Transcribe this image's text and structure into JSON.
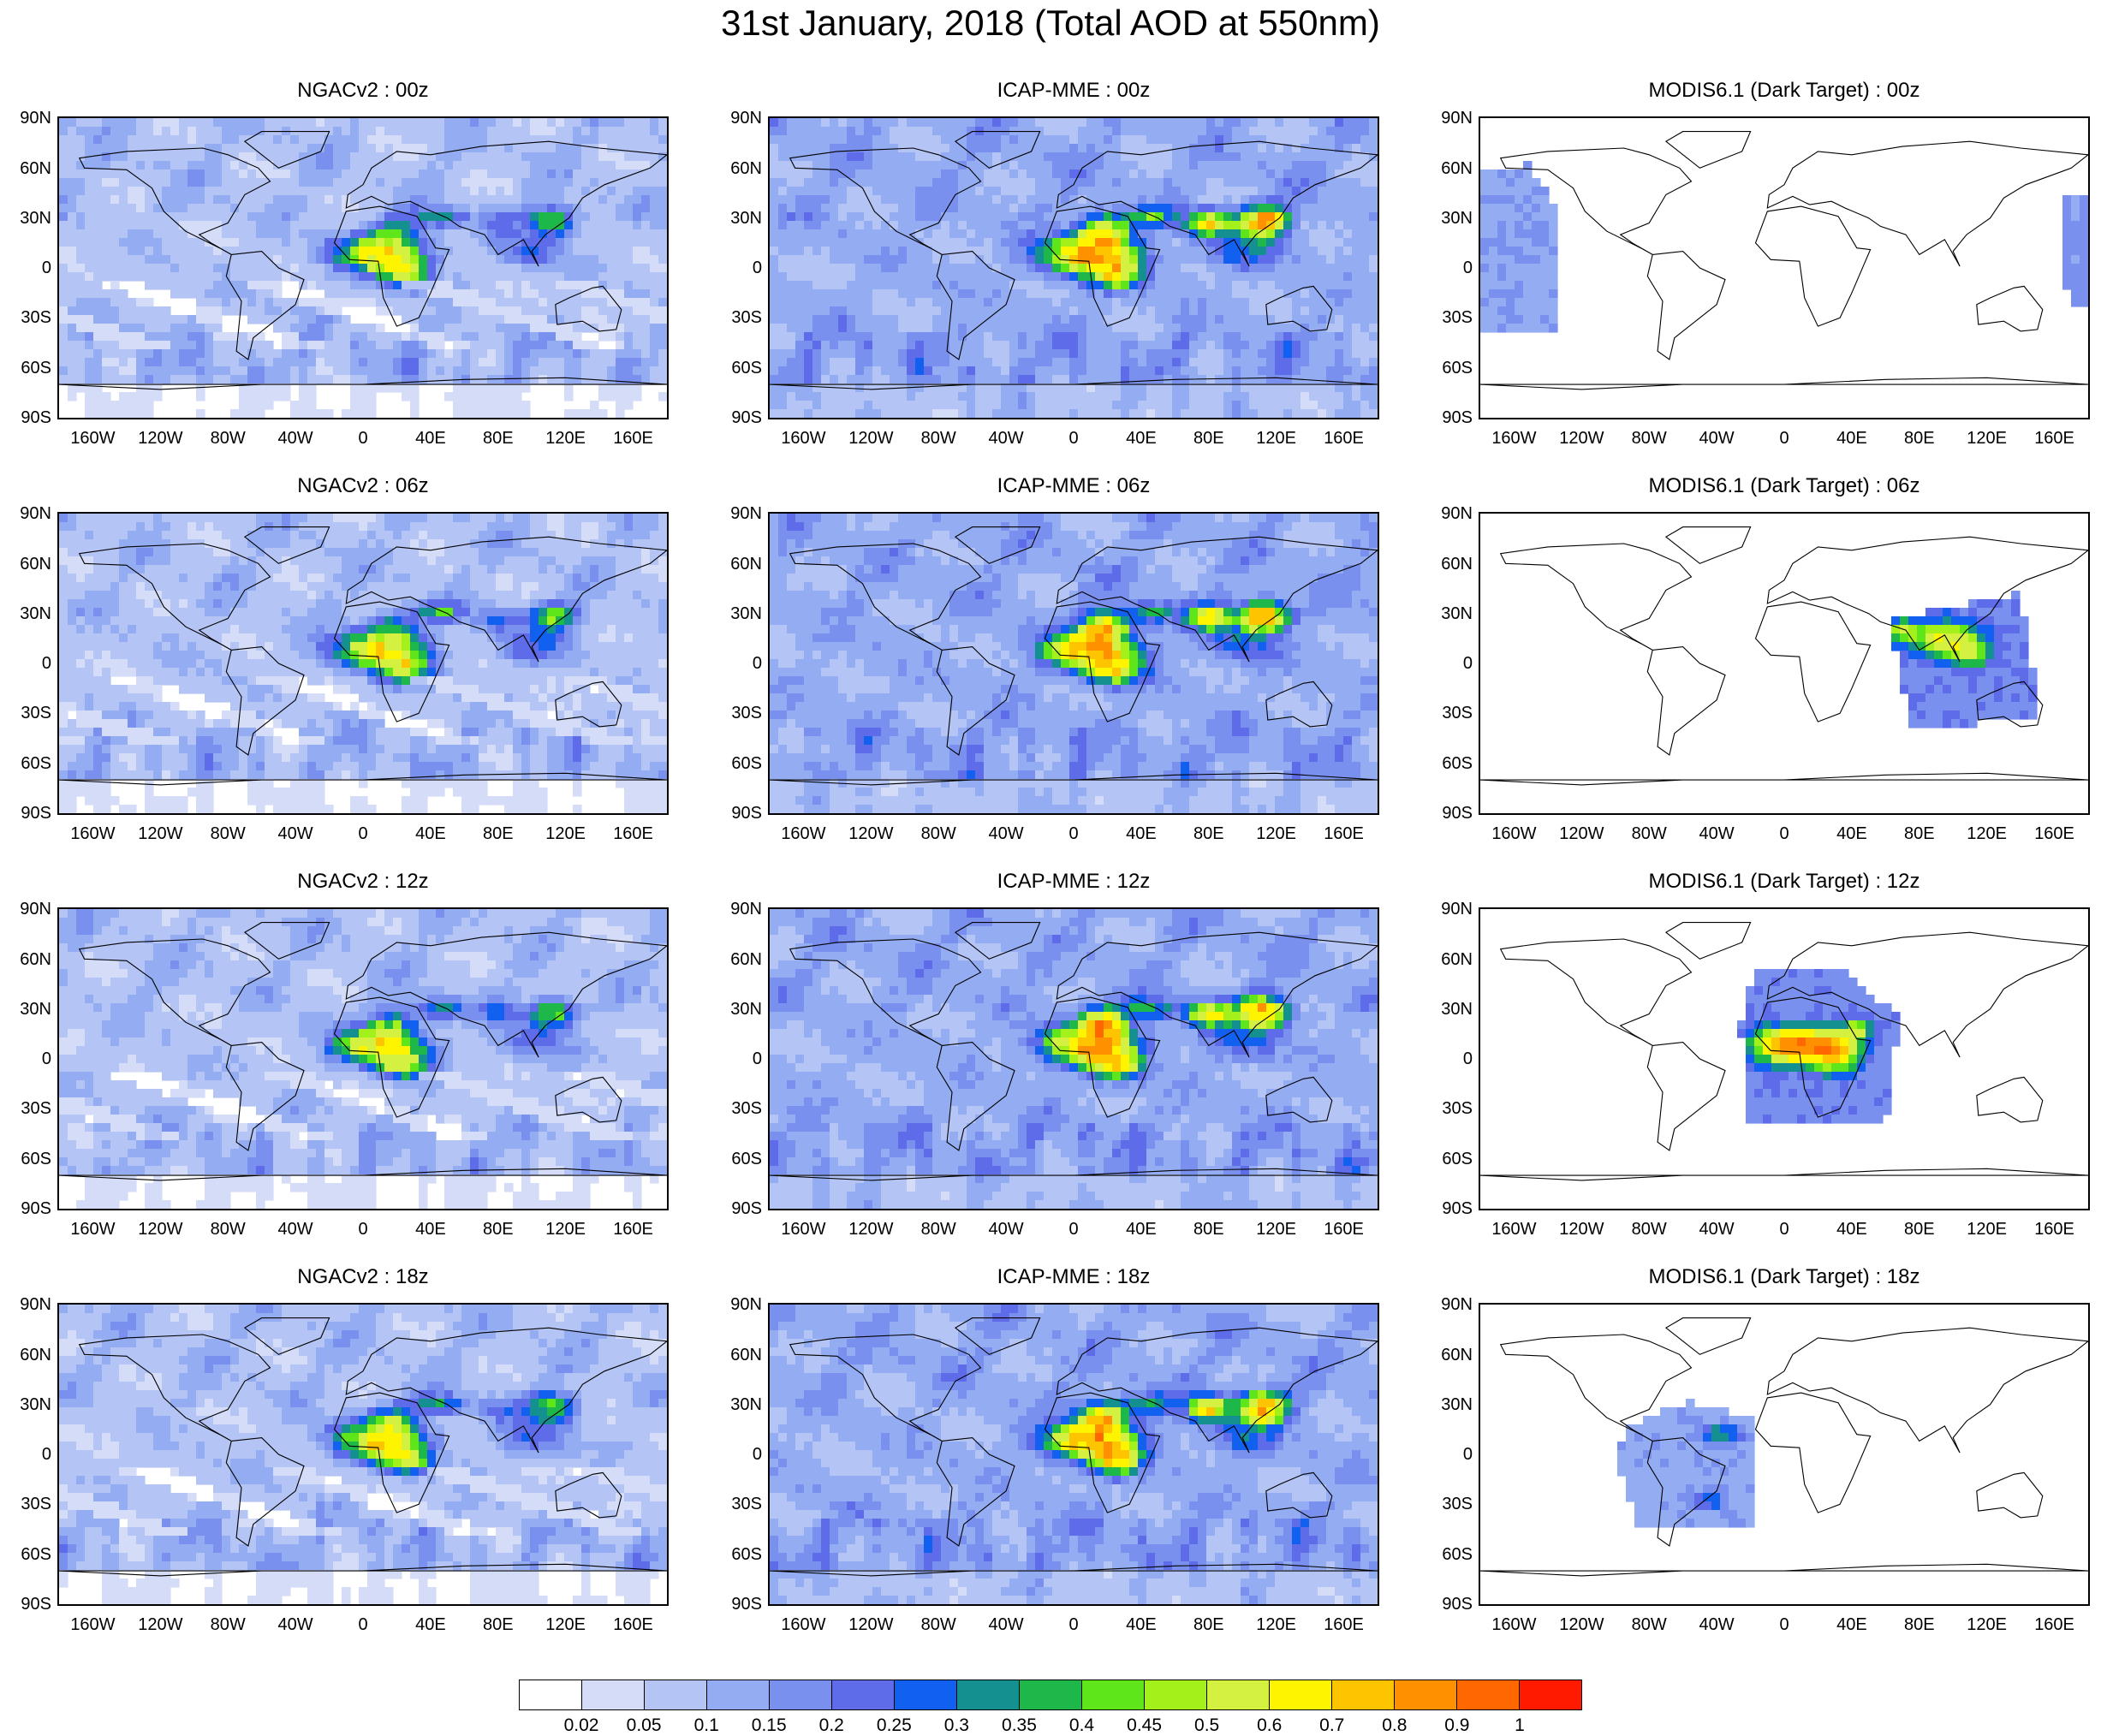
{
  "title": "31st January, 2018 (Total AOD at 550nm)",
  "lat_ticks": [
    "90N",
    "60N",
    "30N",
    "0",
    "30S",
    "60S",
    "90S"
  ],
  "lon_ticks": [
    "160W",
    "120W",
    "80W",
    "40W",
    "0",
    "40E",
    "80E",
    "120E",
    "160E"
  ],
  "colorbar": {
    "labels": [
      "0.02",
      "0.05",
      "0.1",
      "0.15",
      "0.2",
      "0.25",
      "0.3",
      "0.35",
      "0.4",
      "0.45",
      "0.5",
      "0.6",
      "0.7",
      "0.8",
      "0.9",
      "1"
    ],
    "colors": [
      "#ffffff",
      "#d4dcf8",
      "#b4c4f4",
      "#94acf2",
      "#7a90ee",
      "#5e6cea",
      "#1260f0",
      "#149090",
      "#1eb84a",
      "#5ee61a",
      "#a4f01a",
      "#d4f040",
      "#fff400",
      "#ffc400",
      "#ff9000",
      "#ff6800",
      "#ff1a00"
    ]
  },
  "panels": [
    {
      "title": "NGACv2 : 00z",
      "row": 0,
      "col": 0,
      "kind": "model",
      "model": "ngac",
      "hour": 0
    },
    {
      "title": "ICAP-MME : 00z",
      "row": 0,
      "col": 1,
      "kind": "model",
      "model": "icap",
      "hour": 0
    },
    {
      "title": "MODIS6.1 (Dark Target) : 00z",
      "row": 0,
      "col": 2,
      "kind": "modis",
      "hour": 0
    },
    {
      "title": "NGACv2 : 06z",
      "row": 1,
      "col": 0,
      "kind": "model",
      "model": "ngac",
      "hour": 6
    },
    {
      "title": "ICAP-MME : 06z",
      "row": 1,
      "col": 1,
      "kind": "model",
      "model": "icap",
      "hour": 6
    },
    {
      "title": "MODIS6.1 (Dark Target) : 06z",
      "row": 1,
      "col": 2,
      "kind": "modis",
      "hour": 6
    },
    {
      "title": "NGACv2 : 12z",
      "row": 2,
      "col": 0,
      "kind": "model",
      "model": "ngac",
      "hour": 12
    },
    {
      "title": "ICAP-MME : 12z",
      "row": 2,
      "col": 1,
      "kind": "model",
      "model": "icap",
      "hour": 12
    },
    {
      "title": "MODIS6.1 (Dark Target) : 12z",
      "row": 2,
      "col": 2,
      "kind": "modis",
      "hour": 12
    },
    {
      "title": "NGACv2 : 18z",
      "row": 3,
      "col": 0,
      "kind": "model",
      "model": "ngac",
      "hour": 18
    },
    {
      "title": "ICAP-MME : 18z",
      "row": 3,
      "col": 1,
      "kind": "model",
      "model": "icap",
      "hour": 18
    },
    {
      "title": "MODIS6.1 (Dark Target) : 18z",
      "row": 3,
      "col": 2,
      "kind": "modis",
      "hour": 18
    }
  ]
}
